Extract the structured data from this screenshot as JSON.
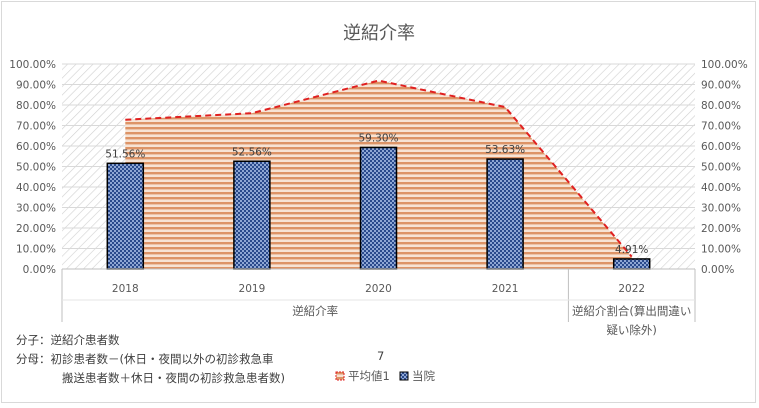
{
  "chart_data": {
    "type": "bar",
    "title": "逆紹介率",
    "categories": [
      "2018",
      "2019",
      "2020",
      "2021",
      "2022"
    ],
    "category_groups": [
      {
        "label": "逆紹介率",
        "categories": [
          "2018",
          "2019",
          "2020",
          "2021"
        ]
      },
      {
        "label_lines": [
          "逆紹介割合(算出間違い",
          "疑い除外)"
        ],
        "categories": [
          "2022"
        ]
      }
    ],
    "series": [
      {
        "name": "平均値1",
        "type": "area",
        "color": "#e8742a",
        "border_color": "#e02020",
        "values": [
          72.8,
          76.0,
          91.9,
          79.0,
          6.0
        ]
      },
      {
        "name": "当院",
        "type": "bar",
        "color": "#2f4f8f",
        "border_color": "#000000",
        "values": [
          51.56,
          52.56,
          59.3,
          53.63,
          4.91
        ],
        "labels": [
          "51.56%",
          "52.56%",
          "59.30%",
          "53.63%",
          "4.91%"
        ]
      }
    ],
    "y_ticks": [
      "0.00%",
      "10.00%",
      "20.00%",
      "30.00%",
      "40.00%",
      "50.00%",
      "60.00%",
      "70.00%",
      "80.00%",
      "90.00%",
      "100.00%"
    ],
    "ylim": [
      0,
      100
    ],
    "secondary_axis": true,
    "grid": true,
    "legend": "bottom",
    "notes": {
      "numerator": "分子：逆紹介患者数",
      "denominator_line1": "分母：初診患者数－(休日・夜間以外の初診救急車",
      "denominator_line2": "搬送患者数＋休日・夜間の初診救急患者数)",
      "stray_value": "7"
    }
  }
}
